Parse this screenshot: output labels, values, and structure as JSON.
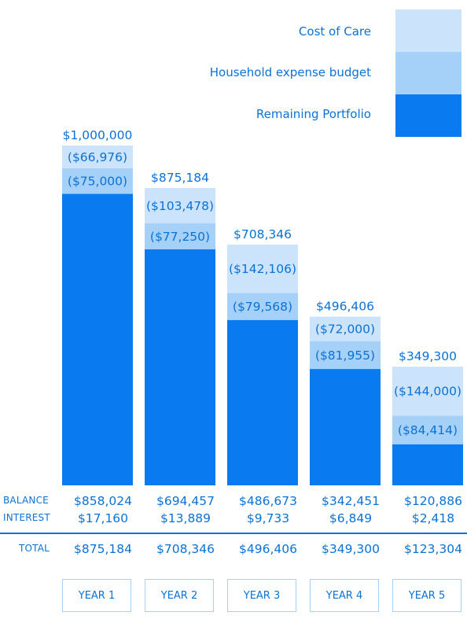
{
  "colors": {
    "cost_of_care": "#cce4fb",
    "household": "#a5d0f7",
    "portfolio": "#0a7af0",
    "text": "#0a72d6"
  },
  "legend": [
    {
      "label": "Cost of Care",
      "color": "#cce4fb"
    },
    {
      "label": "Household expense budget",
      "color": "#a5d0f7"
    },
    {
      "label": "Remaining Portfolio",
      "color": "#0a7af0"
    }
  ],
  "chart_data": {
    "type": "bar",
    "stacked": true,
    "categories": [
      "YEAR 1",
      "YEAR 2",
      "YEAR 3",
      "YEAR 4",
      "YEAR 5"
    ],
    "ylim": [
      0,
      1000000
    ],
    "series": [
      {
        "name": "Remaining Portfolio",
        "values": [
          858024,
          694457,
          486673,
          342451,
          120886
        ]
      },
      {
        "name": "Household expense budget",
        "values": [
          75000,
          77250,
          79568,
          81955,
          84414
        ],
        "labels": [
          "($75,000)",
          "($77,250)",
          "($79,568)",
          "($81,955)",
          "($84,414)"
        ]
      },
      {
        "name": "Cost of Care",
        "values": [
          66976,
          103478,
          142106,
          72000,
          144000
        ],
        "labels": [
          "($66,976)",
          "($103,478)",
          "($142,106)",
          "($72,000)",
          "($144,000)"
        ]
      }
    ],
    "totals": [
      1000000,
      875184,
      708346,
      496406,
      349300
    ],
    "total_labels": [
      "$1,000,000",
      "$875,184",
      "$708,346",
      "$496,406",
      "$349,300"
    ]
  },
  "table": {
    "balance_label": "BALANCE",
    "interest_label": "INTEREST",
    "total_label": "TOTAL",
    "balance": [
      "$858,024",
      "$694,457",
      "$486,673",
      "$342,451",
      "$120,886"
    ],
    "interest": [
      "$17,160",
      "$13,889",
      "$9,733",
      "$6,849",
      "$2,418"
    ],
    "total": [
      "$875,184",
      "$708,346",
      "$496,406",
      "$349,300",
      "$123,304"
    ]
  },
  "years": [
    "YEAR 1",
    "YEAR 2",
    "YEAR 3",
    "YEAR 4",
    "YEAR 5"
  ]
}
